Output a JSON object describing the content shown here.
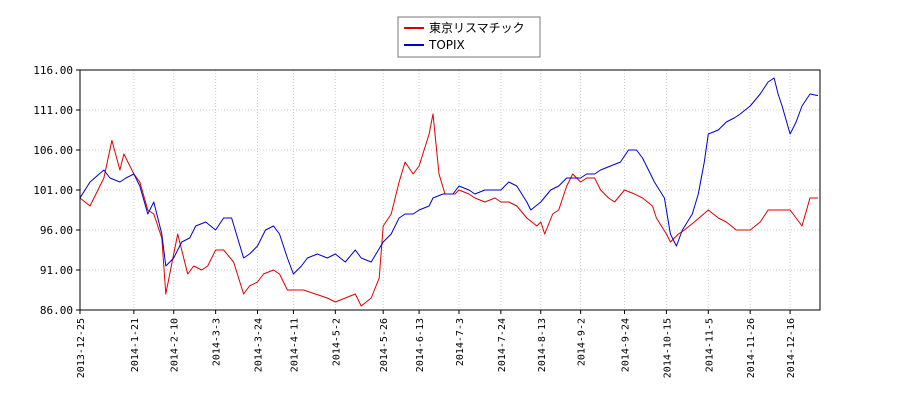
{
  "chart_data": {
    "type": "line",
    "legend_position": "top-center",
    "grid": true,
    "ylim": [
      86.0,
      116.0
    ],
    "yticks": [
      "116.00",
      "111.00",
      "106.00",
      "101.00",
      "96.00",
      "91.00",
      "86.00"
    ],
    "x_tick_labels": [
      "2013-12-25",
      "2014-1-21",
      "2014-2-10",
      "2014-3-3",
      "2014-3-24",
      "2014-4-11",
      "2014-5-2",
      "2014-5-26",
      "2014-6-13",
      "2014-7-3",
      "2014-7-24",
      "2014-8-13",
      "2014-9-2",
      "2014-9-24",
      "2014-10-15",
      "2014-11-5",
      "2014-11-26",
      "2014-12-16"
    ],
    "x_tick_dates": [
      "2013-12-25",
      "2014-01-21",
      "2014-02-10",
      "2014-03-03",
      "2014-03-24",
      "2014-04-11",
      "2014-05-02",
      "2014-05-26",
      "2014-06-13",
      "2014-07-03",
      "2014-07-24",
      "2014-08-13",
      "2014-09-02",
      "2014-09-24",
      "2014-10-15",
      "2014-11-05",
      "2014-11-26",
      "2014-12-16"
    ],
    "series": [
      {
        "name": "東京リスマチック",
        "color": "#dd0000",
        "points": [
          [
            "2013-12-25",
            100.0
          ],
          [
            "2013-12-30",
            99.0
          ],
          [
            "2014-01-06",
            102.5
          ],
          [
            "2014-01-10",
            107.2
          ],
          [
            "2014-01-14",
            103.5
          ],
          [
            "2014-01-16",
            105.5
          ],
          [
            "2014-01-21",
            103.0
          ],
          [
            "2014-01-24",
            102.0
          ],
          [
            "2014-01-28",
            98.5
          ],
          [
            "2014-01-31",
            98.0
          ],
          [
            "2014-02-04",
            95.0
          ],
          [
            "2014-02-06",
            88.0
          ],
          [
            "2014-02-10",
            93.0
          ],
          [
            "2014-02-12",
            95.5
          ],
          [
            "2014-02-17",
            90.5
          ],
          [
            "2014-02-20",
            91.5
          ],
          [
            "2014-02-24",
            91.0
          ],
          [
            "2014-02-27",
            91.5
          ],
          [
            "2014-03-03",
            93.5
          ],
          [
            "2014-03-07",
            93.5
          ],
          [
            "2014-03-12",
            92.0
          ],
          [
            "2014-03-17",
            88.0
          ],
          [
            "2014-03-20",
            89.0
          ],
          [
            "2014-03-24",
            89.5
          ],
          [
            "2014-03-27",
            90.5
          ],
          [
            "2014-04-01",
            91.0
          ],
          [
            "2014-04-04",
            90.5
          ],
          [
            "2014-04-08",
            88.5
          ],
          [
            "2014-04-11",
            88.5
          ],
          [
            "2014-04-16",
            88.5
          ],
          [
            "2014-04-22",
            88.0
          ],
          [
            "2014-04-28",
            87.5
          ],
          [
            "2014-05-02",
            87.0
          ],
          [
            "2014-05-07",
            87.5
          ],
          [
            "2014-05-12",
            88.0
          ],
          [
            "2014-05-15",
            86.5
          ],
          [
            "2014-05-20",
            87.5
          ],
          [
            "2014-05-24",
            90.0
          ],
          [
            "2014-05-26",
            96.5
          ],
          [
            "2014-05-30",
            98.0
          ],
          [
            "2014-06-03",
            102.0
          ],
          [
            "2014-06-06",
            104.5
          ],
          [
            "2014-06-10",
            103.0
          ],
          [
            "2014-06-13",
            104.0
          ],
          [
            "2014-06-18",
            108.0
          ],
          [
            "2014-06-20",
            110.5
          ],
          [
            "2014-06-23",
            103.0
          ],
          [
            "2014-06-26",
            100.5
          ],
          [
            "2014-07-01",
            100.5
          ],
          [
            "2014-07-03",
            101.0
          ],
          [
            "2014-07-08",
            100.5
          ],
          [
            "2014-07-11",
            100.0
          ],
          [
            "2014-07-16",
            99.5
          ],
          [
            "2014-07-21",
            100.0
          ],
          [
            "2014-07-24",
            99.5
          ],
          [
            "2014-07-28",
            99.5
          ],
          [
            "2014-08-01",
            99.0
          ],
          [
            "2014-08-06",
            97.5
          ],
          [
            "2014-08-11",
            96.5
          ],
          [
            "2014-08-13",
            97.0
          ],
          [
            "2014-08-15",
            95.5
          ],
          [
            "2014-08-19",
            98.0
          ],
          [
            "2014-08-22",
            98.5
          ],
          [
            "2014-08-26",
            101.5
          ],
          [
            "2014-08-29",
            103.0
          ],
          [
            "2014-09-02",
            102.0
          ],
          [
            "2014-09-05",
            102.5
          ],
          [
            "2014-09-09",
            102.5
          ],
          [
            "2014-09-12",
            101.0
          ],
          [
            "2014-09-16",
            100.0
          ],
          [
            "2014-09-19",
            99.5
          ],
          [
            "2014-09-24",
            101.0
          ],
          [
            "2014-09-29",
            100.5
          ],
          [
            "2014-10-03",
            100.0
          ],
          [
            "2014-10-08",
            99.0
          ],
          [
            "2014-10-10",
            97.5
          ],
          [
            "2014-10-15",
            95.5
          ],
          [
            "2014-10-17",
            94.5
          ],
          [
            "2014-10-21",
            95.5
          ],
          [
            "2014-10-24",
            96.0
          ],
          [
            "2014-10-29",
            97.0
          ],
          [
            "2014-11-05",
            98.5
          ],
          [
            "2014-11-10",
            97.5
          ],
          [
            "2014-11-14",
            97.0
          ],
          [
            "2014-11-19",
            96.0
          ],
          [
            "2014-11-26",
            96.0
          ],
          [
            "2014-12-01",
            97.0
          ],
          [
            "2014-12-05",
            98.5
          ],
          [
            "2014-12-10",
            98.5
          ],
          [
            "2014-12-16",
            98.5
          ],
          [
            "2014-12-19",
            97.5
          ],
          [
            "2014-12-22",
            96.5
          ],
          [
            "2014-12-26",
            100.0
          ],
          [
            "2014-12-30",
            100.0
          ]
        ]
      },
      {
        "name": "TOPIX",
        "color": "#0000cc",
        "points": [
          [
            "2013-12-25",
            100.0
          ],
          [
            "2013-12-30",
            102.0
          ],
          [
            "2014-01-06",
            103.5
          ],
          [
            "2014-01-09",
            102.5
          ],
          [
            "2014-01-14",
            102.0
          ],
          [
            "2014-01-17",
            102.5
          ],
          [
            "2014-01-21",
            103.0
          ],
          [
            "2014-01-24",
            101.5
          ],
          [
            "2014-01-28",
            98.0
          ],
          [
            "2014-01-31",
            99.5
          ],
          [
            "2014-02-04",
            95.5
          ],
          [
            "2014-02-06",
            91.5
          ],
          [
            "2014-02-10",
            92.5
          ],
          [
            "2014-02-14",
            94.5
          ],
          [
            "2014-02-18",
            95.0
          ],
          [
            "2014-02-21",
            96.5
          ],
          [
            "2014-02-26",
            97.0
          ],
          [
            "2014-03-03",
            96.0
          ],
          [
            "2014-03-07",
            97.5
          ],
          [
            "2014-03-11",
            97.5
          ],
          [
            "2014-03-14",
            95.0
          ],
          [
            "2014-03-17",
            92.5
          ],
          [
            "2014-03-20",
            93.0
          ],
          [
            "2014-03-24",
            94.0
          ],
          [
            "2014-03-28",
            96.0
          ],
          [
            "2014-04-01",
            96.5
          ],
          [
            "2014-04-04",
            95.5
          ],
          [
            "2014-04-08",
            92.5
          ],
          [
            "2014-04-11",
            90.5
          ],
          [
            "2014-04-15",
            91.5
          ],
          [
            "2014-04-18",
            92.5
          ],
          [
            "2014-04-23",
            93.0
          ],
          [
            "2014-04-28",
            92.5
          ],
          [
            "2014-05-02",
            93.0
          ],
          [
            "2014-05-07",
            92.0
          ],
          [
            "2014-05-12",
            93.5
          ],
          [
            "2014-05-15",
            92.5
          ],
          [
            "2014-05-20",
            92.0
          ],
          [
            "2014-05-26",
            94.5
          ],
          [
            "2014-05-30",
            95.5
          ],
          [
            "2014-06-03",
            97.5
          ],
          [
            "2014-06-06",
            98.0
          ],
          [
            "2014-06-10",
            98.0
          ],
          [
            "2014-06-13",
            98.5
          ],
          [
            "2014-06-18",
            99.0
          ],
          [
            "2014-06-20",
            100.0
          ],
          [
            "2014-06-25",
            100.5
          ],
          [
            "2014-06-30",
            100.5
          ],
          [
            "2014-07-03",
            101.5
          ],
          [
            "2014-07-08",
            101.0
          ],
          [
            "2014-07-11",
            100.5
          ],
          [
            "2014-07-16",
            101.0
          ],
          [
            "2014-07-21",
            101.0
          ],
          [
            "2014-07-24",
            101.0
          ],
          [
            "2014-07-28",
            102.0
          ],
          [
            "2014-08-01",
            101.5
          ],
          [
            "2014-08-06",
            99.5
          ],
          [
            "2014-08-08",
            98.5
          ],
          [
            "2014-08-13",
            99.5
          ],
          [
            "2014-08-18",
            101.0
          ],
          [
            "2014-08-22",
            101.5
          ],
          [
            "2014-08-26",
            102.5
          ],
          [
            "2014-08-29",
            102.5
          ],
          [
            "2014-09-02",
            102.5
          ],
          [
            "2014-09-05",
            103.0
          ],
          [
            "2014-09-09",
            103.0
          ],
          [
            "2014-09-12",
            103.5
          ],
          [
            "2014-09-17",
            104.0
          ],
          [
            "2014-09-22",
            104.5
          ],
          [
            "2014-09-26",
            106.0
          ],
          [
            "2014-09-30",
            106.0
          ],
          [
            "2014-10-03",
            105.0
          ],
          [
            "2014-10-06",
            103.5
          ],
          [
            "2014-10-09",
            102.0
          ],
          [
            "2014-10-14",
            100.0
          ],
          [
            "2014-10-17",
            95.5
          ],
          [
            "2014-10-20",
            94.0
          ],
          [
            "2014-10-23",
            96.0
          ],
          [
            "2014-10-28",
            98.0
          ],
          [
            "2014-10-31",
            100.5
          ],
          [
            "2014-11-03",
            104.5
          ],
          [
            "2014-11-05",
            108.0
          ],
          [
            "2014-11-10",
            108.5
          ],
          [
            "2014-11-14",
            109.5
          ],
          [
            "2014-11-18",
            110.0
          ],
          [
            "2014-11-21",
            110.5
          ],
          [
            "2014-11-26",
            111.5
          ],
          [
            "2014-12-01",
            113.0
          ],
          [
            "2014-12-05",
            114.5
          ],
          [
            "2014-12-08",
            115.0
          ],
          [
            "2014-12-10",
            113.0
          ],
          [
            "2014-12-12",
            111.5
          ],
          [
            "2014-12-16",
            108.0
          ],
          [
            "2014-12-19",
            109.5
          ],
          [
            "2014-12-22",
            111.5
          ],
          [
            "2014-12-26",
            113.0
          ],
          [
            "2014-12-30",
            112.8
          ]
        ]
      }
    ]
  }
}
